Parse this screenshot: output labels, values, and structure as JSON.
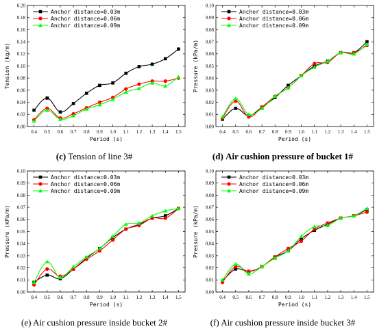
{
  "chart_data": [
    {
      "type": "line",
      "panel_label": "(c)",
      "caption": "Tension of line 3#",
      "xlabel": "Period (s)",
      "ylabel": "Tension (kg/m)",
      "xlim": [
        0.35,
        1.55
      ],
      "ylim": [
        0,
        0.2
      ],
      "yticks": [
        "0.00",
        "0.02",
        "0.04",
        "0.06",
        "0.08",
        "0.10",
        "0.12",
        "0.14",
        "0.16",
        "0.18",
        "0.20"
      ],
      "xticks": [
        "0.4",
        "0.5",
        "0.6",
        "0.7",
        "0.8",
        "0.9",
        "1.0",
        "1.1",
        "1.2",
        "1.3",
        "1.4",
        "1.5"
      ],
      "x": [
        0.4,
        0.5,
        0.6,
        0.7,
        0.8,
        0.9,
        1.0,
        1.1,
        1.2,
        1.3,
        1.4,
        1.5
      ],
      "legend_position": "top-left",
      "series": [
        {
          "name": "Anchor distance=0.03m",
          "color": "#000000",
          "marker": "square",
          "values": [
            0.027,
            0.047,
            0.024,
            0.038,
            0.055,
            0.068,
            0.072,
            0.088,
            0.099,
            0.103,
            0.112,
            0.128
          ]
        },
        {
          "name": "Anchor distance=0.06m",
          "color": "#ff0000",
          "marker": "circle",
          "values": [
            0.011,
            0.03,
            0.014,
            0.021,
            0.031,
            0.04,
            0.048,
            0.062,
            0.07,
            0.075,
            0.075,
            0.08
          ]
        },
        {
          "name": "Anchor distance=0.09m",
          "color": "#00ff00",
          "marker": "triangle",
          "values": [
            0.009,
            0.027,
            0.012,
            0.018,
            0.029,
            0.036,
            0.045,
            0.057,
            0.063,
            0.072,
            0.067,
            0.082
          ]
        }
      ]
    },
    {
      "type": "line",
      "panel_label": "(d)",
      "caption": "Air cushion pressure of bucket 1#",
      "xlabel": "Period (s)",
      "ylabel": "Pressure (kPa/m)",
      "xlim": [
        0.35,
        1.55
      ],
      "ylim": [
        0,
        0.1
      ],
      "yticks": [
        "0.00",
        "0.01",
        "0.02",
        "0.03",
        "0.04",
        "0.05",
        "0.06",
        "0.07",
        "0.08",
        "0.09",
        "0.10"
      ],
      "xticks": [
        "0.4",
        "0.5",
        "0.6",
        "0.7",
        "0.8",
        "0.9",
        "1.0",
        "1.1",
        "1.2",
        "1.3",
        "1.4",
        "1.5"
      ],
      "x": [
        0.4,
        0.5,
        0.6,
        0.7,
        0.8,
        0.9,
        1.0,
        1.1,
        1.2,
        1.3,
        1.4,
        1.5
      ],
      "legend_position": "top-left",
      "series": [
        {
          "name": "Anchor distance=0.03m",
          "color": "#000000",
          "marker": "square",
          "values": [
            0.006,
            0.015,
            0.009,
            0.016,
            0.024,
            0.034,
            0.042,
            0.05,
            0.054,
            0.061,
            0.061,
            0.07
          ]
        },
        {
          "name": "Anchor distance=0.06m",
          "color": "#ff0000",
          "marker": "circle",
          "values": [
            0.007,
            0.021,
            0.008,
            0.016,
            0.025,
            0.032,
            0.042,
            0.052,
            0.053,
            0.061,
            0.061,
            0.067
          ]
        },
        {
          "name": "Anchor distance=0.09m",
          "color": "#00ff00",
          "marker": "triangle",
          "values": [
            0.008,
            0.023,
            0.01,
            0.015,
            0.025,
            0.032,
            0.042,
            0.049,
            0.054,
            0.061,
            0.06,
            0.068
          ]
        }
      ]
    },
    {
      "type": "line",
      "panel_label": "(e)",
      "caption": "Air cushion pressure inside bucket 2#",
      "xlabel": "Period (s)",
      "ylabel": "Pressure (kPa/m)",
      "xlim": [
        0.35,
        1.55
      ],
      "ylim": [
        0,
        0.1
      ],
      "yticks": [
        "0.00",
        "0.01",
        "0.02",
        "0.03",
        "0.04",
        "0.05",
        "0.06",
        "0.07",
        "0.08",
        "0.09",
        "0.10"
      ],
      "xticks": [
        "0.4",
        "0.5",
        "0.6",
        "0.7",
        "0.8",
        "0.9",
        "1.0",
        "1.1",
        "1.2",
        "1.3",
        "1.4",
        "1.5"
      ],
      "x": [
        0.4,
        0.5,
        0.6,
        0.7,
        0.8,
        0.9,
        1.0,
        1.1,
        1.2,
        1.3,
        1.4,
        1.5
      ],
      "legend_position": "top-left",
      "series": [
        {
          "name": "Anchor distance=0.03m",
          "color": "#000000",
          "marker": "square",
          "values": [
            0.008,
            0.014,
            0.011,
            0.019,
            0.028,
            0.036,
            0.045,
            0.052,
            0.056,
            0.061,
            0.063,
            0.069
          ]
        },
        {
          "name": "Anchor distance=0.06m",
          "color": "#ff0000",
          "marker": "circle",
          "values": [
            0.006,
            0.019,
            0.013,
            0.019,
            0.027,
            0.034,
            0.043,
            0.052,
            0.055,
            0.061,
            0.061,
            0.069
          ]
        },
        {
          "name": "Anchor distance=0.09m",
          "color": "#00ff00",
          "marker": "triangle",
          "values": [
            0.008,
            0.025,
            0.012,
            0.021,
            0.029,
            0.036,
            0.046,
            0.056,
            0.057,
            0.063,
            0.067,
            0.069
          ]
        }
      ]
    },
    {
      "type": "line",
      "panel_label": "(f)",
      "caption": "Air cushion pressure inside bucket 3#",
      "xlabel": "Period (s)",
      "ylabel": "Pressure (kPa/m)",
      "xlim": [
        0.35,
        1.55
      ],
      "ylim": [
        0,
        0.1
      ],
      "yticks": [
        "0.00",
        "0.01",
        "0.02",
        "0.03",
        "0.04",
        "0.05",
        "0.06",
        "0.07",
        "0.08",
        "0.09",
        "0.10"
      ],
      "xticks": [
        "0.4",
        "0.5",
        "0.6",
        "0.7",
        "0.8",
        "0.9",
        "1.0",
        "1.1",
        "1.2",
        "1.3",
        "1.4",
        "1.5"
      ],
      "x": [
        0.4,
        0.5,
        0.6,
        0.7,
        0.8,
        0.9,
        1.0,
        1.1,
        1.2,
        1.3,
        1.4,
        1.5
      ],
      "legend_position": "top-left",
      "series": [
        {
          "name": "Anchor distance=0.03m",
          "color": "#000000",
          "marker": "square",
          "values": [
            0.009,
            0.019,
            0.017,
            0.021,
            0.029,
            0.034,
            0.044,
            0.051,
            0.056,
            0.061,
            0.063,
            0.068
          ]
        },
        {
          "name": "Anchor distance=0.06m",
          "color": "#ff0000",
          "marker": "circle",
          "values": [
            0.008,
            0.021,
            0.017,
            0.021,
            0.029,
            0.036,
            0.042,
            0.052,
            0.057,
            0.061,
            0.063,
            0.066
          ]
        },
        {
          "name": "Anchor distance=0.09m",
          "color": "#00ff00",
          "marker": "triangle",
          "values": [
            0.01,
            0.023,
            0.015,
            0.021,
            0.028,
            0.034,
            0.046,
            0.054,
            0.055,
            0.061,
            0.063,
            0.069
          ]
        }
      ]
    }
  ]
}
